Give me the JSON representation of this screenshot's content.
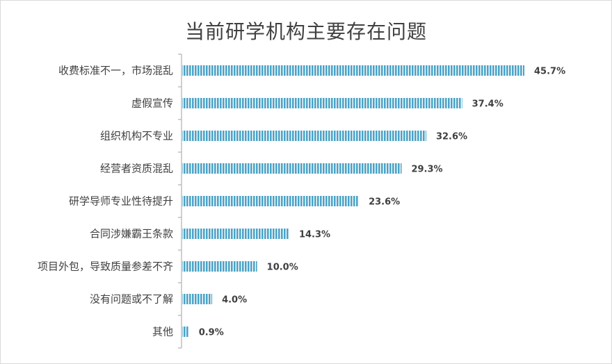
{
  "chart_data": {
    "type": "bar",
    "orientation": "horizontal",
    "title": "当前研学机构主要存在问题",
    "categories": [
      "收费标准不一，市场混乱",
      "虚假宣传",
      "组织机构不专业",
      "经营者资质混乱",
      "研学导师专业性待提升",
      "合同涉嫌霸王条款",
      "项目外包，导致质量参差不齐",
      "没有问题或不了解",
      "其他"
    ],
    "values": [
      45.7,
      37.4,
      32.6,
      29.3,
      23.6,
      14.3,
      10.0,
      4.0,
      0.9
    ],
    "value_labels": [
      "45.7%",
      "37.4%",
      "32.6%",
      "29.3%",
      "23.6%",
      "14.3%",
      "10.0%",
      "4.0%",
      "0.9%"
    ],
    "xlim": [
      0,
      50
    ],
    "grid": false,
    "legend": "none",
    "colors": {
      "bar_stripe": "#4ba3c7",
      "bar_gap": "#ffffff",
      "axis": "#bfbfbf",
      "text": "#404040"
    }
  }
}
